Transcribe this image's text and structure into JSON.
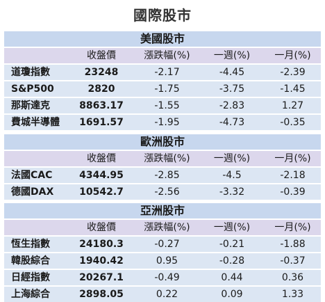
{
  "title": "國際股市",
  "columns": [
    "",
    "收盤價",
    "漲跌幅(%)",
    "一週(%)",
    "一月(%)"
  ],
  "sections": [
    {
      "name": "美國股市",
      "rows": [
        [
          "道瓊指數",
          "23248",
          "-2.17",
          "-4.45",
          "-2.39"
        ],
        [
          "S&P500",
          "2820",
          "-1.75",
          "-3.75",
          "-1.45"
        ],
        [
          "那斯達克",
          "8863.17",
          "-1.55",
          "-2.83",
          "1.27"
        ],
        [
          "費城半導體",
          "1691.57",
          "-1.95",
          "-4.73",
          "-0.35"
        ]
      ]
    },
    {
      "name": "歐洲股市",
      "rows": [
        [
          "法國CAC",
          "4344.95",
          "-2.85",
          "-4.5",
          "-2.18"
        ],
        [
          "德國DAX",
          "10542.7",
          "-2.56",
          "-3.32",
          "-0.39"
        ]
      ]
    },
    {
      "name": "亞洲股市",
      "rows": [
        [
          "恆生指數",
          "24180.3",
          "-0.27",
          "-0.21",
          "-1.88"
        ],
        [
          "韓股綜合",
          "1940.42",
          "0.95",
          "-0.28",
          "-0.37"
        ],
        [
          "日經指數",
          "20267.1",
          "-0.49",
          "0.44",
          "0.36"
        ],
        [
          "上海綜合",
          "2898.05",
          "0.22",
          "0.09",
          "1.33"
        ]
      ]
    }
  ]
}
